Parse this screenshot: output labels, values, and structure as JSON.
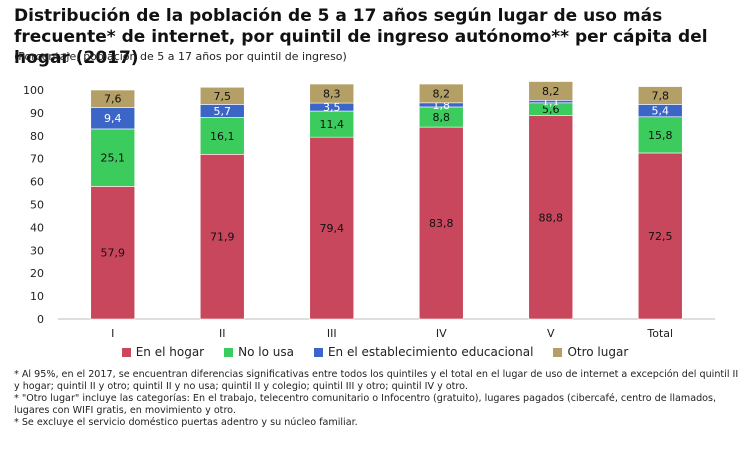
{
  "chart_data": {
    "type": "bar",
    "stacked": true,
    "title": "Distribución de la población de 5 a 17 años según lugar de uso más frecuente* de internet, por quintil de ingreso autónomo** per cápita del hogar (2017)",
    "subtitle": "(Porcentaje, población de 5 a 17 años por quintil de ingreso)",
    "categories": [
      "I",
      "II",
      "III",
      "IV",
      "V",
      "Total"
    ],
    "ylim": [
      0,
      100
    ],
    "yticks": [
      0,
      10,
      20,
      30,
      40,
      50,
      60,
      70,
      80,
      90,
      100
    ],
    "grid": false,
    "legend_position": "bottom",
    "series": [
      {
        "name": "En el hogar",
        "color": "#c8475c",
        "label_color": "#111111",
        "values": [
          57.9,
          71.9,
          79.4,
          83.8,
          88.8,
          72.5
        ],
        "labels": [
          "57,9",
          "71,9",
          "79,4",
          "83,8",
          "88,8",
          "72,5"
        ]
      },
      {
        "name": "No lo usa",
        "color": "#3ccc5e",
        "label_color": "#111111",
        "values": [
          25.1,
          16.1,
          11.4,
          8.8,
          5.6,
          15.8
        ],
        "labels": [
          "25,1",
          "16,1",
          "11,4",
          "8,8",
          "5,6",
          "15,8"
        ]
      },
      {
        "name": "En el establecimiento educacional",
        "color": "#3b66c8",
        "label_color": "#ffffff",
        "values": [
          9.4,
          5.7,
          3.5,
          1.8,
          1.1,
          5.4
        ],
        "labels": [
          "9,4",
          "5,7",
          "3,5",
          "1,8",
          "1,1",
          "5,4"
        ]
      },
      {
        "name": "Otro lugar",
        "color": "#b49f66",
        "label_color": "#111111",
        "values": [
          7.6,
          7.5,
          8.3,
          8.2,
          8.2,
          7.8
        ],
        "labels": [
          "7,6",
          "7,5",
          "8,3",
          "8,2",
          "8,2",
          "7,8"
        ]
      }
    ]
  },
  "notes": [
    "* Al 95%, en el 2017, se encuentran diferencias significativas entre todos los quintiles y el total en el lugar de uso de internet a excepción del quintil II y hogar; quintil II y otro; quintil II y no usa; quintil II y colegio; quintil III y otro; quintil IV y otro.",
    "* \"Otro lugar\" incluye las categorías: En el trabajo, telecentro comunitario o Infocentro (gratuito), lugares pagados (cibercafé, centro de llamados, lugares con WIFI gratis, en movimiento y otro.",
    "* Se excluye el servicio doméstico puertas adentro y su núcleo familiar."
  ]
}
